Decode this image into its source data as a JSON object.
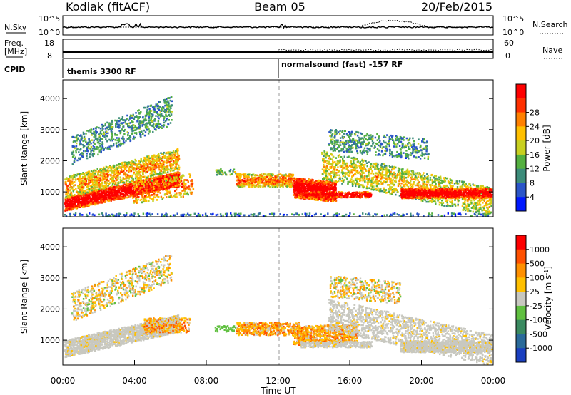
{
  "header": {
    "title": "Kodiak (fitACF)",
    "beam": "Beam 05",
    "date": "20/Feb/2015"
  },
  "top_panels": {
    "nsky_label": "N.Sky",
    "nsearch_label": "N.Search",
    "noise_ticks": [
      "10^5",
      "10^0"
    ],
    "freq_label_1": "Freq.",
    "freq_label_2": "[MHz]",
    "freq_ticks": [
      "18",
      "8"
    ],
    "nave_label": "Nave",
    "nave_ticks": [
      "60",
      "0"
    ],
    "cpid_label": "CPID",
    "cpid_1": "themis 3300 RF",
    "cpid_2": "normalsound (fast) -157 RF"
  },
  "chart_data": [
    {
      "type": "heatmap",
      "name": "power-panel",
      "ylabel": "Slant Range [km]",
      "y_ticks": [
        "1000",
        "2000",
        "3000",
        "4000"
      ],
      "ylim": [
        200,
        4600
      ],
      "colorbar": {
        "label": "Power [dB]",
        "ticks": [
          "4",
          "8",
          "12",
          "16",
          "20",
          "24",
          "28"
        ],
        "colors": [
          "#0018ff",
          "#2a55c8",
          "#3c8c7a",
          "#54b040",
          "#c8d020",
          "#ffc000",
          "#ff8000",
          "#ff3000",
          "#ff0000"
        ]
      }
    },
    {
      "type": "heatmap",
      "name": "velocity-panel",
      "ylabel": "Slant Range [km]",
      "y_ticks": [
        "1000",
        "2000",
        "3000",
        "4000"
      ],
      "ylim": [
        200,
        4600
      ],
      "xlabel": "Time UT",
      "x_ticks": [
        "00:00",
        "04:00",
        "08:00",
        "12:00",
        "16:00",
        "20:00",
        "00:00"
      ],
      "colorbar": {
        "label": "Velocity [m s",
        "label_sup": "-1",
        "label_close": "]",
        "ticks": [
          "1000",
          "500",
          "100",
          "25",
          "-25",
          "-100",
          "-500",
          "-1000"
        ],
        "colors": [
          "#1a3fc0",
          "#2a6a9a",
          "#3a8a60",
          "#60c040",
          "#c8c8c0",
          "#ffc000",
          "#ff9000",
          "#ff5000",
          "#ff0000"
        ]
      }
    }
  ]
}
